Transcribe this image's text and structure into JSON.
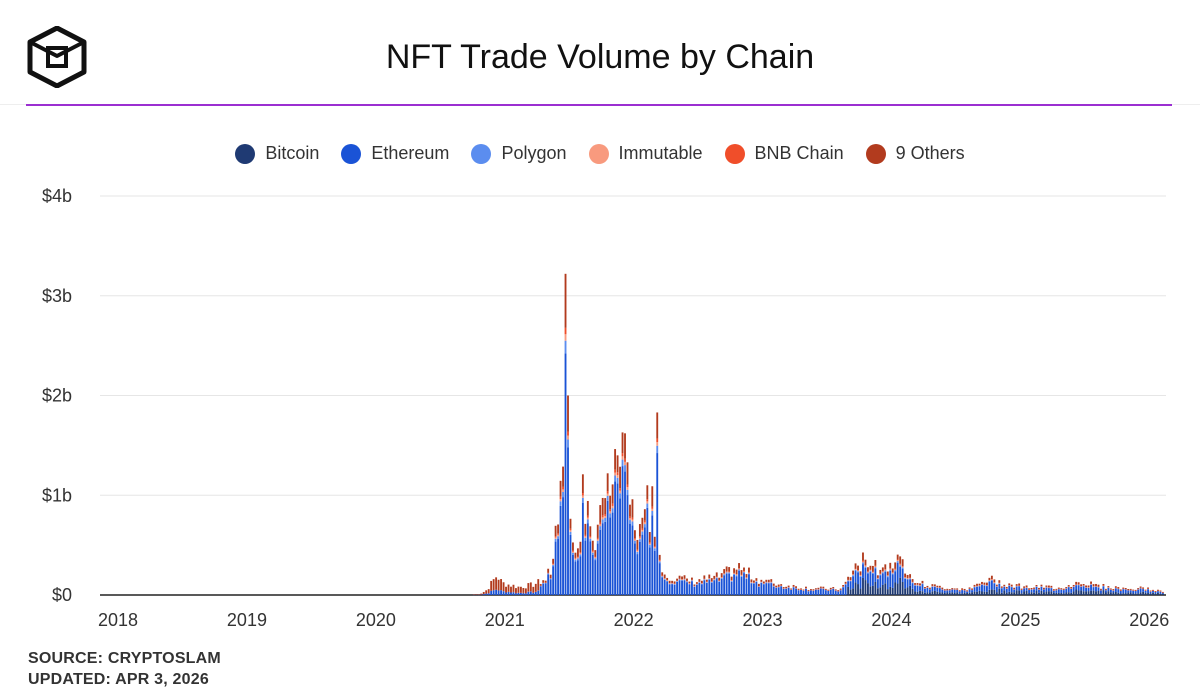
{
  "header": {
    "title": "NFT Trade Volume by Chain",
    "logo_icon": "cube-logo-icon",
    "accent_color": "#9b2fd1"
  },
  "footer": {
    "source": "SOURCE: CRYPTOSLAM",
    "updated": "UPDATED: APR 3, 2026"
  },
  "chart_data": {
    "type": "bar",
    "stacked": true,
    "title": "NFT Trade Volume by Chain",
    "xlabel": "",
    "ylabel": "",
    "ylim": [
      0,
      4
    ],
    "yticks": [
      "$0",
      "$1b",
      "$2b",
      "$3b",
      "$4b"
    ],
    "xticks": [
      "2018",
      "2019",
      "2020",
      "2021",
      "2022",
      "2023",
      "2024",
      "2025",
      "2026"
    ],
    "xlim": [
      2018.0,
      2026.27
    ],
    "grid": true,
    "legend_position": "top-center",
    "series": [
      {
        "name": "Bitcoin",
        "color": "#1f3a73"
      },
      {
        "name": "Ethereum",
        "color": "#1a53d6"
      },
      {
        "name": "Polygon",
        "color": "#5b8def"
      },
      {
        "name": "Immutable",
        "color": "#f89a7e"
      },
      {
        "name": "BNB Chain",
        "color": "#f04e2a"
      },
      {
        "name": "9 Others",
        "color": "#b23b1e"
      }
    ],
    "anchors": [
      [
        2018.0,
        0.0
      ],
      [
        2020.8,
        0.0
      ],
      [
        2020.95,
        0.01
      ],
      [
        2021.0,
        0.05
      ],
      [
        2021.08,
        0.2
      ],
      [
        2021.12,
        0.12
      ],
      [
        2021.25,
        0.08
      ],
      [
        2021.35,
        0.1
      ],
      [
        2021.45,
        0.15
      ],
      [
        2021.5,
        0.25
      ],
      [
        2021.55,
        0.75
      ],
      [
        2021.6,
        1.1
      ],
      [
        2021.65,
        0.7
      ],
      [
        2021.72,
        0.45
      ],
      [
        2021.78,
        0.8
      ],
      [
        2021.85,
        0.55
      ],
      [
        2021.92,
        0.9
      ],
      [
        2022.0,
        1.3
      ],
      [
        2022.05,
        1.45
      ],
      [
        2022.12,
        0.85
      ],
      [
        2022.2,
        0.6
      ],
      [
        2022.28,
        0.95
      ],
      [
        2022.36,
        0.25
      ],
      [
        2022.45,
        0.18
      ],
      [
        2022.6,
        0.14
      ],
      [
        2022.8,
        0.18
      ],
      [
        2022.95,
        0.28
      ],
      [
        2023.1,
        0.16
      ],
      [
        2023.3,
        0.1
      ],
      [
        2023.5,
        0.07
      ],
      [
        2023.75,
        0.06
      ],
      [
        2023.85,
        0.25
      ],
      [
        2023.95,
        0.38
      ],
      [
        2024.05,
        0.25
      ],
      [
        2024.15,
        0.35
      ],
      [
        2024.25,
        0.3
      ],
      [
        2024.35,
        0.12
      ],
      [
        2024.5,
        0.08
      ],
      [
        2024.75,
        0.06
      ],
      [
        2024.9,
        0.16
      ],
      [
        2025.0,
        0.12
      ],
      [
        2025.2,
        0.08
      ],
      [
        2025.5,
        0.08
      ],
      [
        2025.6,
        0.14
      ],
      [
        2025.75,
        0.09
      ],
      [
        2026.0,
        0.06
      ],
      [
        2026.1,
        0.07
      ],
      [
        2026.27,
        0.03
      ]
    ],
    "spikes": [
      {
        "x": 2021.61,
        "value": 3.22
      },
      {
        "x": 2021.64,
        "value": 2.0
      },
      {
        "x": 2022.05,
        "value": 1.63
      },
      {
        "x": 2022.02,
        "value": 1.4
      },
      {
        "x": 2022.32,
        "value": 1.83
      },
      {
        "x": 2021.74,
        "value": 1.21
      },
      {
        "x": 2021.94,
        "value": 1.22
      },
      {
        "x": 2022.25,
        "value": 1.1
      }
    ]
  }
}
